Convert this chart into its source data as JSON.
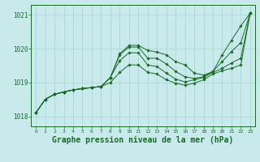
{
  "background_color": "#c8eaea",
  "grid_color": "#b0d8d8",
  "line_color": "#1a6b2a",
  "marker_color": "#1a6b2a",
  "xlabel": "Graphe pression niveau de la mer (hPa)",
  "xlabel_fontsize": 7,
  "xlabel_color": "#1a6b2a",
  "ylim": [
    1017.7,
    1021.3
  ],
  "xlim": [
    -0.5,
    23.5
  ],
  "yticks": [
    1018,
    1019,
    1020,
    1021
  ],
  "xticks": [
    0,
    1,
    2,
    3,
    4,
    5,
    6,
    7,
    8,
    9,
    10,
    11,
    12,
    13,
    14,
    15,
    16,
    17,
    18,
    19,
    20,
    21,
    22,
    23
  ],
  "series": [
    [
      1018.1,
      1018.5,
      1018.65,
      1018.72,
      1018.78,
      1018.82,
      1018.85,
      1018.88,
      1019.15,
      1019.85,
      1020.1,
      1020.1,
      1019.95,
      1019.9,
      1019.82,
      1019.62,
      1019.52,
      1019.28,
      1019.22,
      1019.32,
      1019.82,
      1020.25,
      1020.68,
      1021.05
    ],
    [
      1018.1,
      1018.5,
      1018.65,
      1018.72,
      1018.78,
      1018.82,
      1018.85,
      1018.88,
      1019.15,
      1019.82,
      1020.05,
      1020.05,
      1019.72,
      1019.72,
      1019.55,
      1019.33,
      1019.17,
      1019.12,
      1019.17,
      1019.33,
      1019.62,
      1019.92,
      1020.18,
      1021.05
    ],
    [
      1018.1,
      1018.5,
      1018.65,
      1018.72,
      1018.78,
      1018.82,
      1018.85,
      1018.88,
      1019.15,
      1019.65,
      1019.88,
      1019.88,
      1019.52,
      1019.47,
      1019.28,
      1019.1,
      1019.02,
      1019.08,
      1019.15,
      1019.3,
      1019.42,
      1019.58,
      1019.72,
      1021.05
    ],
    [
      1018.1,
      1018.5,
      1018.65,
      1018.72,
      1018.78,
      1018.82,
      1018.85,
      1018.88,
      1019.0,
      1019.3,
      1019.52,
      1019.52,
      1019.3,
      1019.25,
      1019.08,
      1018.98,
      1018.92,
      1018.98,
      1019.08,
      1019.25,
      1019.35,
      1019.42,
      1019.52,
      1021.05
    ]
  ]
}
